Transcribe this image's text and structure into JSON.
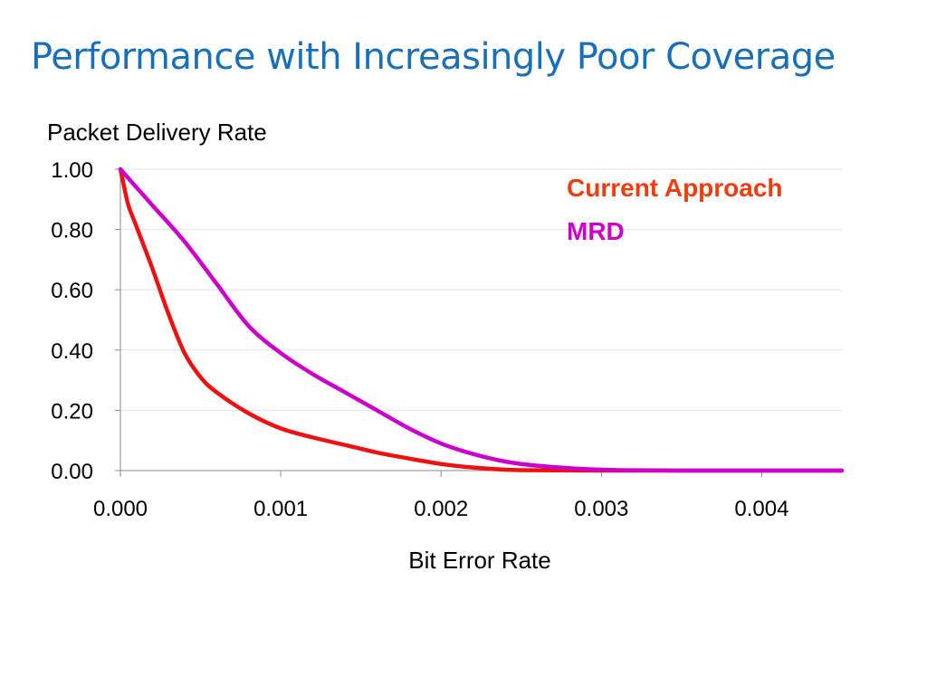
{
  "slide": {
    "title": "Performance with Increasingly Poor Coverage"
  },
  "chart_data": {
    "type": "line",
    "ylabel": "Packet Delivery Rate",
    "xlabel": "Bit Error Rate",
    "xlim": [
      0,
      0.0045
    ],
    "ylim": [
      0,
      1
    ],
    "x_ticks": [
      "0.000",
      "0.001",
      "0.002",
      "0.003",
      "0.004"
    ],
    "y_ticks": [
      "0.00",
      "0.20",
      "0.40",
      "0.60",
      "0.80",
      "1.00"
    ],
    "grid": true,
    "legend": "top-right",
    "series": [
      {
        "name": "Current Approach",
        "color": "#ee1111",
        "label_color": "#f03c0f",
        "points": [
          [
            0,
            1.0
          ],
          [
            2e-05,
            0.95
          ],
          [
            5e-05,
            0.88
          ],
          [
            0.0001,
            0.81
          ],
          [
            0.0002,
            0.67
          ],
          [
            0.0003,
            0.52
          ],
          [
            0.0004,
            0.39
          ],
          [
            0.0005,
            0.31
          ],
          [
            0.0006,
            0.26
          ],
          [
            0.0008,
            0.19
          ],
          [
            0.001,
            0.14
          ],
          [
            0.0012,
            0.11
          ],
          [
            0.0014,
            0.085
          ],
          [
            0.0016,
            0.06
          ],
          [
            0.0018,
            0.04
          ],
          [
            0.002,
            0.022
          ],
          [
            0.0022,
            0.01
          ],
          [
            0.0024,
            0.003
          ],
          [
            0.0026,
            0.001
          ],
          [
            0.003,
            0.0
          ],
          [
            0.0035,
            0.0
          ],
          [
            0.004,
            0.0
          ],
          [
            0.0045,
            0.0
          ]
        ]
      },
      {
        "name": "MRD",
        "color": "#cc00cc",
        "label_color": "#cc00cc",
        "points": [
          [
            0,
            1.0
          ],
          [
            0.0001,
            0.94
          ],
          [
            0.0002,
            0.88
          ],
          [
            0.0004,
            0.76
          ],
          [
            0.0006,
            0.62
          ],
          [
            0.0008,
            0.48
          ],
          [
            0.001,
            0.39
          ],
          [
            0.0012,
            0.32
          ],
          [
            0.0014,
            0.26
          ],
          [
            0.0016,
            0.2
          ],
          [
            0.0018,
            0.14
          ],
          [
            0.002,
            0.09
          ],
          [
            0.0022,
            0.055
          ],
          [
            0.0024,
            0.03
          ],
          [
            0.0026,
            0.016
          ],
          [
            0.0028,
            0.008
          ],
          [
            0.003,
            0.003
          ],
          [
            0.0032,
            0.001
          ],
          [
            0.0035,
            0.0
          ],
          [
            0.004,
            0.0
          ],
          [
            0.0045,
            0.0
          ]
        ]
      }
    ]
  }
}
